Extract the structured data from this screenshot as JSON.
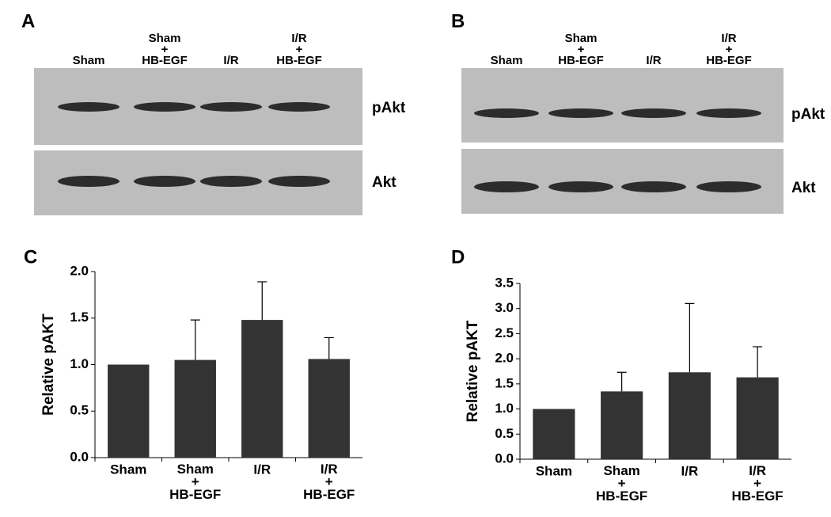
{
  "blots": [
    {
      "panel": "A",
      "lanes": [
        "Sham",
        "Sham\n+\nHB-EGF",
        "I/R",
        "I/R\n+\nHB-EGF"
      ],
      "bands": [
        "pAkt",
        "Akt"
      ]
    },
    {
      "panel": "B",
      "lanes": [
        "Sham",
        "Sham\n+\nHB-EGF",
        "I/R",
        "I/R\n+\nHB-EGF"
      ],
      "bands": [
        "pAkt",
        "Akt"
      ]
    }
  ],
  "chart_data": [
    {
      "type": "bar",
      "panel": "C",
      "ylabel": "Relative pAKT",
      "color": "#333333",
      "categories": [
        "Sham",
        "Sham\n+\nHB-EGF",
        "I/R",
        "I/R\n+\nHB-EGF"
      ],
      "values": [
        1.0,
        1.05,
        1.48,
        1.06
      ],
      "errors": [
        null,
        0.43,
        0.41,
        0.23
      ],
      "ylim": [
        0,
        2
      ],
      "yticks": [
        {
          "value": 0,
          "label": "0.0"
        },
        0.5,
        {
          "value": 1,
          "label": "1.0"
        },
        1.5,
        {
          "value": 2,
          "label": "2.0"
        }
      ]
    },
    {
      "type": "bar",
      "panel": "D",
      "ylabel": "Relative pAKT",
      "color": "#333333",
      "categories": [
        "Sham",
        "Sham\n+\nHB-EGF",
        "I/R",
        "I/R\n+\nHB-EGF"
      ],
      "values": [
        1.0,
        1.35,
        1.73,
        1.63
      ],
      "errors": [
        null,
        0.38,
        1.37,
        0.61
      ],
      "ylim": [
        0,
        3.5
      ],
      "yticks": [
        {
          "value": 0,
          "label": "0.0"
        },
        0.5,
        {
          "value": 1,
          "label": "1.0"
        },
        1.5,
        {
          "value": 2,
          "label": "2.0"
        },
        2.5,
        {
          "value": 3,
          "label": "3.0"
        },
        3.5
      ]
    }
  ]
}
